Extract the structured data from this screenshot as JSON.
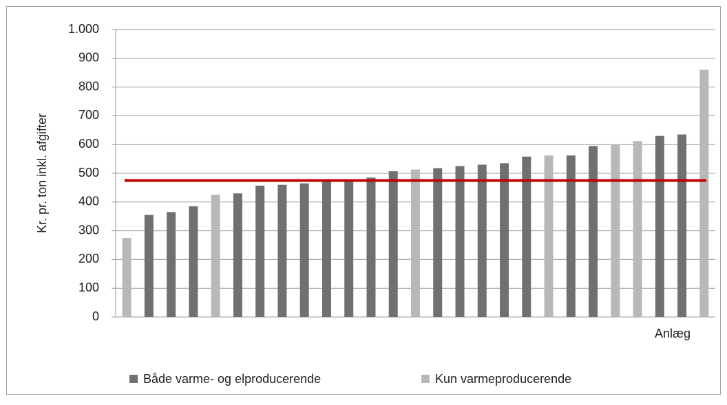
{
  "chart_data": {
    "type": "bar",
    "y_label": "Kr. pr. ton inkl. afgifter",
    "x_label": "Anlæg",
    "categories": [
      null,
      null,
      null,
      null,
      null,
      null,
      null,
      null,
      null,
      null,
      null,
      null,
      null,
      null,
      null,
      null,
      null,
      null,
      null,
      null,
      null,
      null,
      null,
      null,
      null,
      null,
      null
    ],
    "series": [
      {
        "name": "Både varme- og elproducerende",
        "color": "#707070",
        "values": [
          null,
          355,
          365,
          385,
          null,
          430,
          457,
          460,
          465,
          475,
          478,
          485,
          507,
          null,
          518,
          525,
          530,
          535,
          558,
          null,
          562,
          595,
          null,
          null,
          630,
          635,
          null
        ]
      },
      {
        "name": "Kun varmeproducerende",
        "color": "#b8b8b8",
        "values": [
          275,
          null,
          null,
          null,
          425,
          null,
          null,
          null,
          null,
          null,
          null,
          null,
          null,
          513,
          null,
          null,
          null,
          null,
          null,
          562,
          null,
          null,
          600,
          612,
          null,
          null,
          860
        ]
      }
    ],
    "reference_line": {
      "value": 475,
      "color": "#c00000"
    },
    "ylim": [
      0,
      1000
    ],
    "yticks": [
      0,
      100,
      200,
      300,
      400,
      500,
      600,
      700,
      800,
      900,
      {
        "value": 1000,
        "label": "1.000"
      }
    ],
    "grid": true,
    "legend": "bottom"
  }
}
